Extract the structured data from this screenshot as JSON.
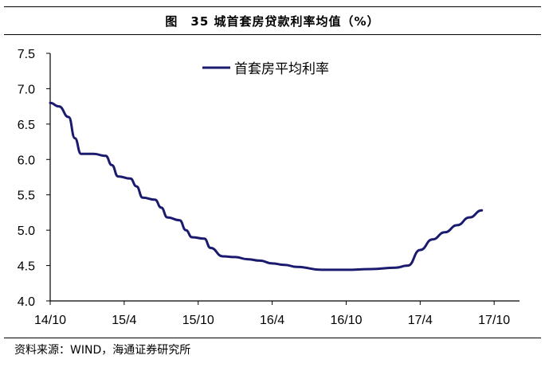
{
  "header": {
    "title": "图　35 城首套房贷款利率均值（%）"
  },
  "footer": {
    "source": "资料来源：WIND，海通证券研究所"
  },
  "colors": {
    "line": "#1a1a6e",
    "axis": "#000000"
  },
  "chart_data": {
    "type": "line",
    "title": "图　35 城首套房贷款利率均值（%）",
    "xlabel": "",
    "ylabel": "",
    "x_tick_labels": [
      "14/10",
      "15/4",
      "15/10",
      "16/4",
      "16/10",
      "17/4",
      "17/10"
    ],
    "x_range": [
      0,
      36
    ],
    "ylim": [
      4.0,
      7.5
    ],
    "y_ticks": [
      4.0,
      4.5,
      5.0,
      5.5,
      6.0,
      6.5,
      7.0,
      7.5
    ],
    "y_tick_labels": [
      "4.0",
      "4.5",
      "5.0",
      "5.5",
      "6.0",
      "6.5",
      "7.0",
      "7.5"
    ],
    "grid": false,
    "legend": "top-center",
    "series": [
      {
        "name": "首套房平均利率",
        "x": [
          0,
          0.7,
          1.5,
          2.0,
          2.5,
          3.5,
          4.5,
          5.0,
          5.5,
          6.5,
          7.0,
          7.5,
          8.5,
          9.0,
          9.5,
          10.5,
          11.0,
          11.5,
          12.5,
          13.0,
          14.0,
          15.0,
          16.0,
          17.0,
          18.0,
          19.0,
          20.0,
          22.0,
          24.0,
          26.0,
          28.0,
          29.0,
          30.0,
          31.0,
          32.0,
          33.0,
          34.0,
          35.0
        ],
        "y": [
          6.8,
          6.75,
          6.6,
          6.3,
          6.08,
          6.08,
          6.05,
          5.92,
          5.76,
          5.73,
          5.62,
          5.46,
          5.43,
          5.32,
          5.18,
          5.14,
          5.0,
          4.9,
          4.88,
          4.75,
          4.63,
          4.62,
          4.59,
          4.57,
          4.53,
          4.51,
          4.48,
          4.44,
          4.44,
          4.45,
          4.47,
          4.5,
          4.72,
          4.87,
          4.97,
          5.07,
          5.18,
          5.28
        ]
      }
    ]
  }
}
